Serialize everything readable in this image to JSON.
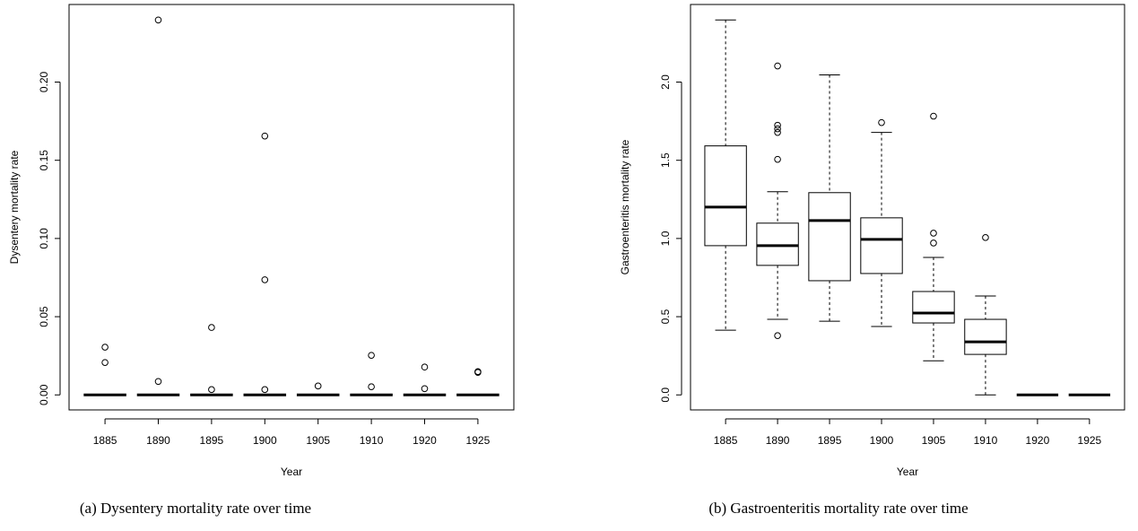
{
  "chart_data": [
    {
      "type": "box",
      "caption": "(a) Dysentery mortality rate over time",
      "x_label": "Year",
      "y_label": "Dysentery mortality rate",
      "categories": [
        "1885",
        "1890",
        "1895",
        "1900",
        "1905",
        "1910",
        "1920",
        "1925"
      ],
      "boxes": [
        {
          "min": 0,
          "q1": 0,
          "median": 0,
          "q3": 0,
          "max": 0,
          "outliers": [
            0.0305,
            0.0207
          ]
        },
        {
          "min": 0,
          "q1": 0,
          "median": 0,
          "q3": 0,
          "max": 0,
          "outliers": [
            0.2397,
            0.0086
          ]
        },
        {
          "min": 0,
          "q1": 0,
          "median": 0,
          "q3": 0,
          "max": 0,
          "outliers": [
            0.0431,
            0.0034
          ]
        },
        {
          "min": 0,
          "q1": 0,
          "median": 0,
          "q3": 0,
          "max": 0,
          "outliers": [
            0.1655,
            0.0736,
            0.0034
          ]
        },
        {
          "min": 0,
          "q1": 0,
          "median": 0,
          "q3": 0,
          "max": 0,
          "outliers": [
            0.0057
          ]
        },
        {
          "min": 0,
          "q1": 0,
          "median": 0,
          "q3": 0,
          "max": 0,
          "outliers": [
            0.0253,
            0.0052
          ]
        },
        {
          "min": 0,
          "q1": 0,
          "median": 0,
          "q3": 0,
          "max": 0,
          "outliers": [
            0.0178,
            0.004
          ]
        },
        {
          "min": 0,
          "q1": 0,
          "median": 0,
          "q3": 0,
          "max": 0,
          "outliers": [
            0.0149,
            0.0144
          ]
        }
      ],
      "ylim": [
        -0.0096,
        0.2496
      ],
      "yticks": [
        {
          "value": 0,
          "label": "0.00"
        },
        0.05,
        {
          "value": 0.1,
          "label": "0.10"
        },
        0.15,
        {
          "value": 0.2,
          "label": "0.20"
        }
      ]
    },
    {
      "type": "box",
      "caption": "(b) Gastroenteritis mortality rate over time",
      "x_label": "Year",
      "y_label": "Gastroenteritis mortality rate",
      "categories": [
        "1885",
        "1890",
        "1895",
        "1900",
        "1905",
        "1910",
        "1920",
        "1925"
      ],
      "boxes": [
        {
          "min": 0.414,
          "q1": 0.954,
          "median": 1.201,
          "q3": 1.592,
          "max": 2.397,
          "outliers": []
        },
        {
          "min": 0.483,
          "q1": 0.828,
          "median": 0.954,
          "q3": 1.098,
          "max": 1.299,
          "outliers": [
            2.103,
            1.724,
            1.701,
            1.678,
            1.506,
            0.379
          ]
        },
        {
          "min": 0.471,
          "q1": 0.73,
          "median": 1.115,
          "q3": 1.293,
          "max": 2.046,
          "outliers": []
        },
        {
          "min": 0.437,
          "q1": 0.776,
          "median": 0.994,
          "q3": 1.132,
          "max": 1.678,
          "outliers": [
            1.741
          ]
        },
        {
          "min": 0.218,
          "q1": 0.46,
          "median": 0.523,
          "q3": 0.661,
          "max": 0.879,
          "outliers": [
            1.782,
            1.034,
            0.971
          ]
        },
        {
          "min": 0,
          "q1": 0.259,
          "median": 0.339,
          "q3": 0.483,
          "max": 0.632,
          "outliers": [
            1.006
          ]
        },
        {
          "min": 0,
          "q1": 0,
          "median": 0,
          "q3": 0,
          "max": 0,
          "outliers": []
        },
        {
          "min": 0,
          "q1": 0,
          "median": 0,
          "q3": 0,
          "max": 0,
          "outliers": []
        }
      ],
      "ylim": [
        -0.096,
        2.496
      ],
      "yticks": [
        {
          "value": 0,
          "label": "0.0"
        },
        0.5,
        {
          "value": 1,
          "label": "1.0"
        },
        1.5,
        {
          "value": 2,
          "label": "2.0"
        }
      ]
    }
  ]
}
